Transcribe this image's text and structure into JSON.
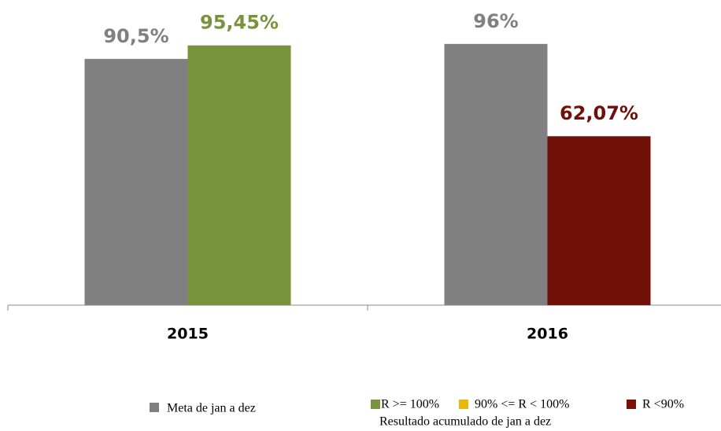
{
  "chart_data": {
    "type": "bar",
    "categories": [
      "2015",
      "2016"
    ],
    "ylim": [
      0,
      100
    ],
    "series": [
      {
        "name": "Meta de jan a dez",
        "color": "#808080",
        "values": [
          90.5,
          96
        ],
        "value_labels": [
          "90,5%",
          "96%"
        ]
      },
      {
        "name": "Resultado acumulado de jan a dez",
        "colors": [
          "#77933c",
          "#6f1009"
        ],
        "values": [
          95.45,
          62.07
        ],
        "value_labels": [
          "95,45%",
          "62,07%"
        ]
      }
    ],
    "color_legend": [
      {
        "label": "R >= 100%",
        "color": "#77933c"
      },
      {
        "label": "90% <= R < 100%",
        "color": "#e8b70a"
      },
      {
        "label": "R <90%",
        "color": "#7b1009"
      }
    ]
  }
}
